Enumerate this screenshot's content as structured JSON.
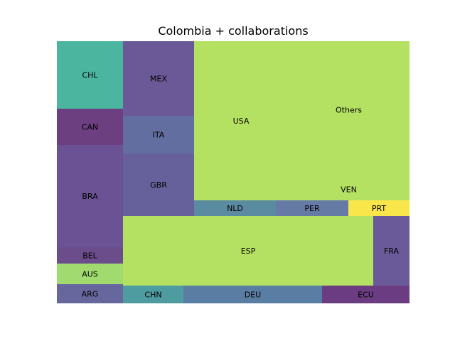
{
  "chart_data": {
    "type": "treemap",
    "title": "Colombia + collaborations",
    "grid": false,
    "legend": "none",
    "cells": [
      {
        "label": "CHL",
        "value": 8.9,
        "color": "#4bb59f"
      },
      {
        "label": "CAN",
        "value": 4.6,
        "color": "#6b3f80"
      },
      {
        "label": "BRA",
        "value": 13.4,
        "color": "#6a5295"
      },
      {
        "label": "BEL",
        "value": 2.2,
        "color": "#6b4d8c"
      },
      {
        "label": "AUS",
        "value": 2.7,
        "color": "#a1db6f"
      },
      {
        "label": "ARG",
        "value": 2.5,
        "color": "#67679e"
      },
      {
        "label": "MEX",
        "value": 10.6,
        "color": "#6a5897"
      },
      {
        "label": "ITA",
        "value": 5.2,
        "color": "#636ea0"
      },
      {
        "label": "GBR",
        "value": 8.9,
        "color": "#67619b"
      },
      {
        "label": "USA",
        "value": 29.7,
        "color": "#b5e162"
      },
      {
        "label": "Others",
        "value": 34.4,
        "color": "#b5e162"
      },
      {
        "label": "VEN",
        "value": 5.2,
        "color": "#b5e162"
      },
      {
        "label": "NLD",
        "value": 2.6,
        "color": "#5b8ba0"
      },
      {
        "label": "PER",
        "value": 2.3,
        "color": "#667aa6"
      },
      {
        "label": "PRT",
        "value": 2.0,
        "color": "#f9e64b"
      },
      {
        "label": "ESP",
        "value": 34.5,
        "color": "#b5e162"
      },
      {
        "label": "FRA",
        "value": 4.9,
        "color": "#6a5a9a"
      },
      {
        "label": "CHN",
        "value": 2.1,
        "color": "#4e9ca0"
      },
      {
        "label": "DEU",
        "value": 4.9,
        "color": "#5a7ea3"
      },
      {
        "label": "ECU",
        "value": 3.1,
        "color": "#6b3c82"
      }
    ]
  }
}
